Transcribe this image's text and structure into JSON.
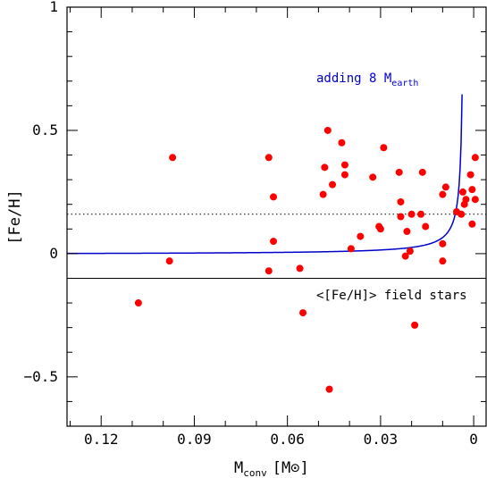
{
  "chart_data": {
    "type": "scatter",
    "xlabel": "M",
    "xlabel_sub": "conv",
    "xlabel_unit": "[M",
    "xlabel_unit_symbol": "⊙",
    "xlabel_unit_close": "]",
    "ylabel": "[Fe/H]",
    "xlim": [
      0.131,
      -0.004
    ],
    "ylim": [
      -0.7,
      1.0
    ],
    "x_reversed": true,
    "xticks": [
      {
        "value": 0.12,
        "label": "0.12"
      },
      {
        "value": 0.09,
        "label": "0.09"
      },
      {
        "value": 0.06,
        "label": "0.06"
      },
      {
        "value": 0.03,
        "label": "0.03"
      },
      {
        "value": 0.0,
        "label": "0"
      }
    ],
    "yticks": [
      {
        "value": 1.0,
        "label": "1"
      },
      {
        "value": 0.5,
        "label": "0.5"
      },
      {
        "value": 0.0,
        "label": "0"
      },
      {
        "value": -0.5,
        "label": "−0.5"
      }
    ],
    "points": [
      {
        "x": 0.108,
        "y": -0.2
      },
      {
        "x": 0.098,
        "y": -0.03
      },
      {
        "x": 0.097,
        "y": 0.39
      },
      {
        "x": 0.066,
        "y": 0.39
      },
      {
        "x": 0.0645,
        "y": 0.23
      },
      {
        "x": 0.0645,
        "y": 0.05
      },
      {
        "x": 0.066,
        "y": -0.07
      },
      {
        "x": 0.056,
        "y": -0.06
      },
      {
        "x": 0.055,
        "y": -0.24
      },
      {
        "x": 0.047,
        "y": 0.5
      },
      {
        "x": 0.048,
        "y": 0.35
      },
      {
        "x": 0.0485,
        "y": 0.24
      },
      {
        "x": 0.0455,
        "y": 0.28
      },
      {
        "x": 0.0425,
        "y": 0.45
      },
      {
        "x": 0.0415,
        "y": 0.36
      },
      {
        "x": 0.0415,
        "y": 0.32
      },
      {
        "x": 0.0395,
        "y": 0.02
      },
      {
        "x": 0.0365,
        "y": 0.07
      },
      {
        "x": 0.0465,
        "y": -0.55
      },
      {
        "x": 0.0325,
        "y": 0.31
      },
      {
        "x": 0.029,
        "y": 0.43
      },
      {
        "x": 0.0305,
        "y": 0.11
      },
      {
        "x": 0.03,
        "y": 0.1
      },
      {
        "x": 0.024,
        "y": 0.33
      },
      {
        "x": 0.0235,
        "y": 0.21
      },
      {
        "x": 0.0235,
        "y": 0.15
      },
      {
        "x": 0.022,
        "y": -0.01
      },
      {
        "x": 0.0215,
        "y": 0.09
      },
      {
        "x": 0.0205,
        "y": 0.01
      },
      {
        "x": 0.02,
        "y": 0.16
      },
      {
        "x": 0.019,
        "y": -0.29
      },
      {
        "x": 0.0165,
        "y": 0.33
      },
      {
        "x": 0.017,
        "y": 0.16
      },
      {
        "x": 0.0155,
        "y": 0.11
      },
      {
        "x": 0.01,
        "y": 0.24
      },
      {
        "x": 0.009,
        "y": 0.27
      },
      {
        "x": 0.01,
        "y": 0.04
      },
      {
        "x": 0.01,
        "y": -0.03
      },
      {
        "x": 0.0055,
        "y": 0.17
      },
      {
        "x": 0.004,
        "y": 0.16
      },
      {
        "x": 0.0035,
        "y": 0.25
      },
      {
        "x": 0.003,
        "y": 0.2
      },
      {
        "x": 0.0025,
        "y": 0.22
      },
      {
        "x": 0.001,
        "y": 0.32
      },
      {
        "x": 0.0005,
        "y": 0.12
      },
      {
        "x": 0.0005,
        "y": 0.26
      },
      {
        "x": -0.0005,
        "y": 0.39
      },
      {
        "x": -0.0005,
        "y": 0.22
      }
    ],
    "point_color": "#ff0000",
    "curve": {
      "color": "#0000cc",
      "label": "adding 8 M",
      "label_sub": "earth",
      "asymptote_x": 0.003,
      "coefficient": 0.00048,
      "offset": -0.003
    },
    "field_stars_line": {
      "y": -0.1,
      "label": "<[Fe/H]> field stars"
    },
    "dotted_line": {
      "y": 0.16
    }
  }
}
